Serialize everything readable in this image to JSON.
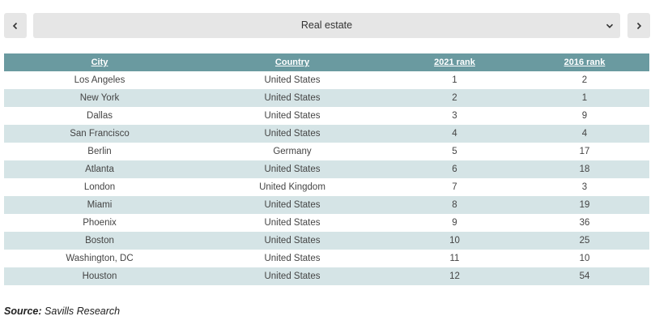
{
  "selector": {
    "label": "Real estate"
  },
  "table": {
    "headers": [
      "City",
      "Country",
      "2021 rank",
      "2016 rank"
    ],
    "rows": [
      [
        "Los Angeles",
        "United States",
        "1",
        "2"
      ],
      [
        "New York",
        "United States",
        "2",
        "1"
      ],
      [
        "Dallas",
        "United States",
        "3",
        "9"
      ],
      [
        "San Francisco",
        "United States",
        "4",
        "4"
      ],
      [
        "Berlin",
        "Germany",
        "5",
        "17"
      ],
      [
        "Atlanta",
        "United States",
        "6",
        "18"
      ],
      [
        "London",
        "United Kingdom",
        "7",
        "3"
      ],
      [
        "Miami",
        "United States",
        "8",
        "19"
      ],
      [
        "Phoenix",
        "United States",
        "9",
        "36"
      ],
      [
        "Boston",
        "United States",
        "10",
        "25"
      ],
      [
        "Washington, DC",
        "United States",
        "11",
        "10"
      ],
      [
        "Houston",
        "United States",
        "12",
        "54"
      ]
    ]
  },
  "source": {
    "label": "Source:",
    "text": "Savills Research"
  },
  "icons": {
    "prev": "chevron-left-icon",
    "next": "chevron-right-icon",
    "dropdown": "chevron-down-icon"
  }
}
